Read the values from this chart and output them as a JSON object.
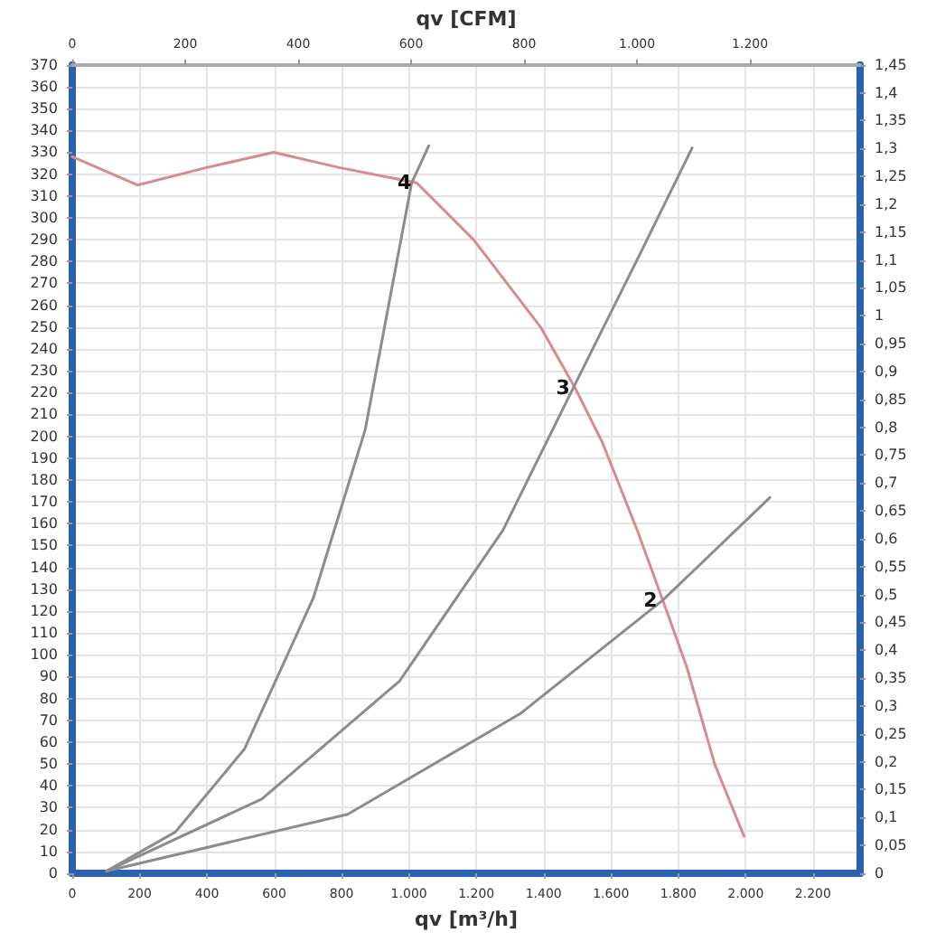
{
  "chart_data": {
    "type": "line",
    "xlabel": "qv [m³/h]",
    "x2label": "qv [CFM]",
    "xlim": [
      0,
      2340
    ],
    "xticks": [
      0,
      200,
      400,
      600,
      800,
      {
        "value": 1000,
        "label": "1.000"
      },
      {
        "value": 1200,
        "label": "1.200"
      },
      {
        "value": 1400,
        "label": "1.400"
      },
      {
        "value": 1600,
        "label": "1.600"
      },
      {
        "value": 1800,
        "label": "1.800"
      },
      {
        "value": 2000,
        "label": "2.000"
      },
      {
        "value": 2200,
        "label": "2.200"
      }
    ],
    "x2lim": [
      0,
      1395
    ],
    "x2ticks": [
      0,
      200,
      400,
      600,
      800,
      {
        "value": 1000,
        "label": "1.000"
      },
      {
        "value": 1200,
        "label": "1.200"
      }
    ],
    "ylim": [
      0,
      370
    ],
    "yticks": [
      0,
      10,
      20,
      30,
      40,
      50,
      60,
      70,
      80,
      90,
      100,
      110,
      120,
      130,
      140,
      150,
      160,
      170,
      180,
      190,
      200,
      210,
      220,
      230,
      240,
      250,
      260,
      270,
      280,
      290,
      300,
      310,
      320,
      330,
      340,
      350,
      360,
      370
    ],
    "y2lim": [
      0,
      1.45
    ],
    "y2ticks": [
      0,
      {
        "value": 0.05,
        "label": "0,05"
      },
      {
        "value": 0.1,
        "label": "0,1"
      },
      {
        "value": 0.15,
        "label": "0,15"
      },
      {
        "value": 0.2,
        "label": "0,2"
      },
      {
        "value": 0.25,
        "label": "0,25"
      },
      {
        "value": 0.3,
        "label": "0,3"
      },
      {
        "value": 0.35,
        "label": "0,35"
      },
      {
        "value": 0.4,
        "label": "0,4"
      },
      {
        "value": 0.45,
        "label": "0,45"
      },
      {
        "value": 0.5,
        "label": "0,5"
      },
      {
        "value": 0.55,
        "label": "0,55"
      },
      {
        "value": 0.6,
        "label": "0,6"
      },
      {
        "value": 0.65,
        "label": "0,65"
      },
      {
        "value": 0.7,
        "label": "0,7"
      },
      {
        "value": 0.75,
        "label": "0,75"
      },
      {
        "value": 0.8,
        "label": "0,8"
      },
      {
        "value": 0.85,
        "label": "0,85"
      },
      {
        "value": 0.9,
        "label": "0,9"
      },
      {
        "value": 0.95,
        "label": "0,95"
      },
      1,
      {
        "value": 1.05,
        "label": "1,05"
      },
      {
        "value": 1.1,
        "label": "1,1"
      },
      {
        "value": 1.15,
        "label": "1,15"
      },
      {
        "value": 1.2,
        "label": "1,2"
      },
      {
        "value": 1.25,
        "label": "1,25"
      },
      {
        "value": 1.3,
        "label": "1,3"
      },
      {
        "value": 1.35,
        "label": "1,35"
      },
      {
        "value": 1.4,
        "label": "1,4"
      },
      {
        "value": 1.45,
        "label": "1,45"
      }
    ],
    "grid": true,
    "series": [
      {
        "color": "#d98a8a",
        "x": [
          0,
          194,
          399,
          598,
          793,
          1023,
          1192,
          1391,
          1494,
          1575,
          1678,
          1754,
          1826,
          1908,
          1995
        ],
        "values": [
          328,
          315,
          323,
          330,
          323,
          316,
          290,
          250,
          222,
          197,
          157,
          125,
          94,
          50,
          17
        ]
      },
      {
        "color": "#8c8c8c",
        "x": [
          102,
          307,
          512,
          716,
          870,
          1008,
          1059
        ],
        "values": [
          1,
          19,
          57,
          126,
          203,
          316,
          333
        ]
      },
      {
        "color": "#8c8c8c",
        "x": [
          102,
          563,
          972,
          1279,
          1494,
          1688,
          1841
        ],
        "values": [
          1,
          34,
          88,
          157,
          224,
          284,
          332
        ]
      },
      {
        "color": "#8c8c8c",
        "x": [
          102,
          818,
          1330,
          1754,
          2072
        ],
        "values": [
          1,
          27,
          73,
          125,
          172
        ]
      }
    ],
    "annotations": [
      {
        "text": "4",
        "x": 1023,
        "y": 316
      },
      {
        "text": "3",
        "x": 1494,
        "y": 222
      },
      {
        "text": "2",
        "x": 1754,
        "y": 125
      }
    ]
  }
}
